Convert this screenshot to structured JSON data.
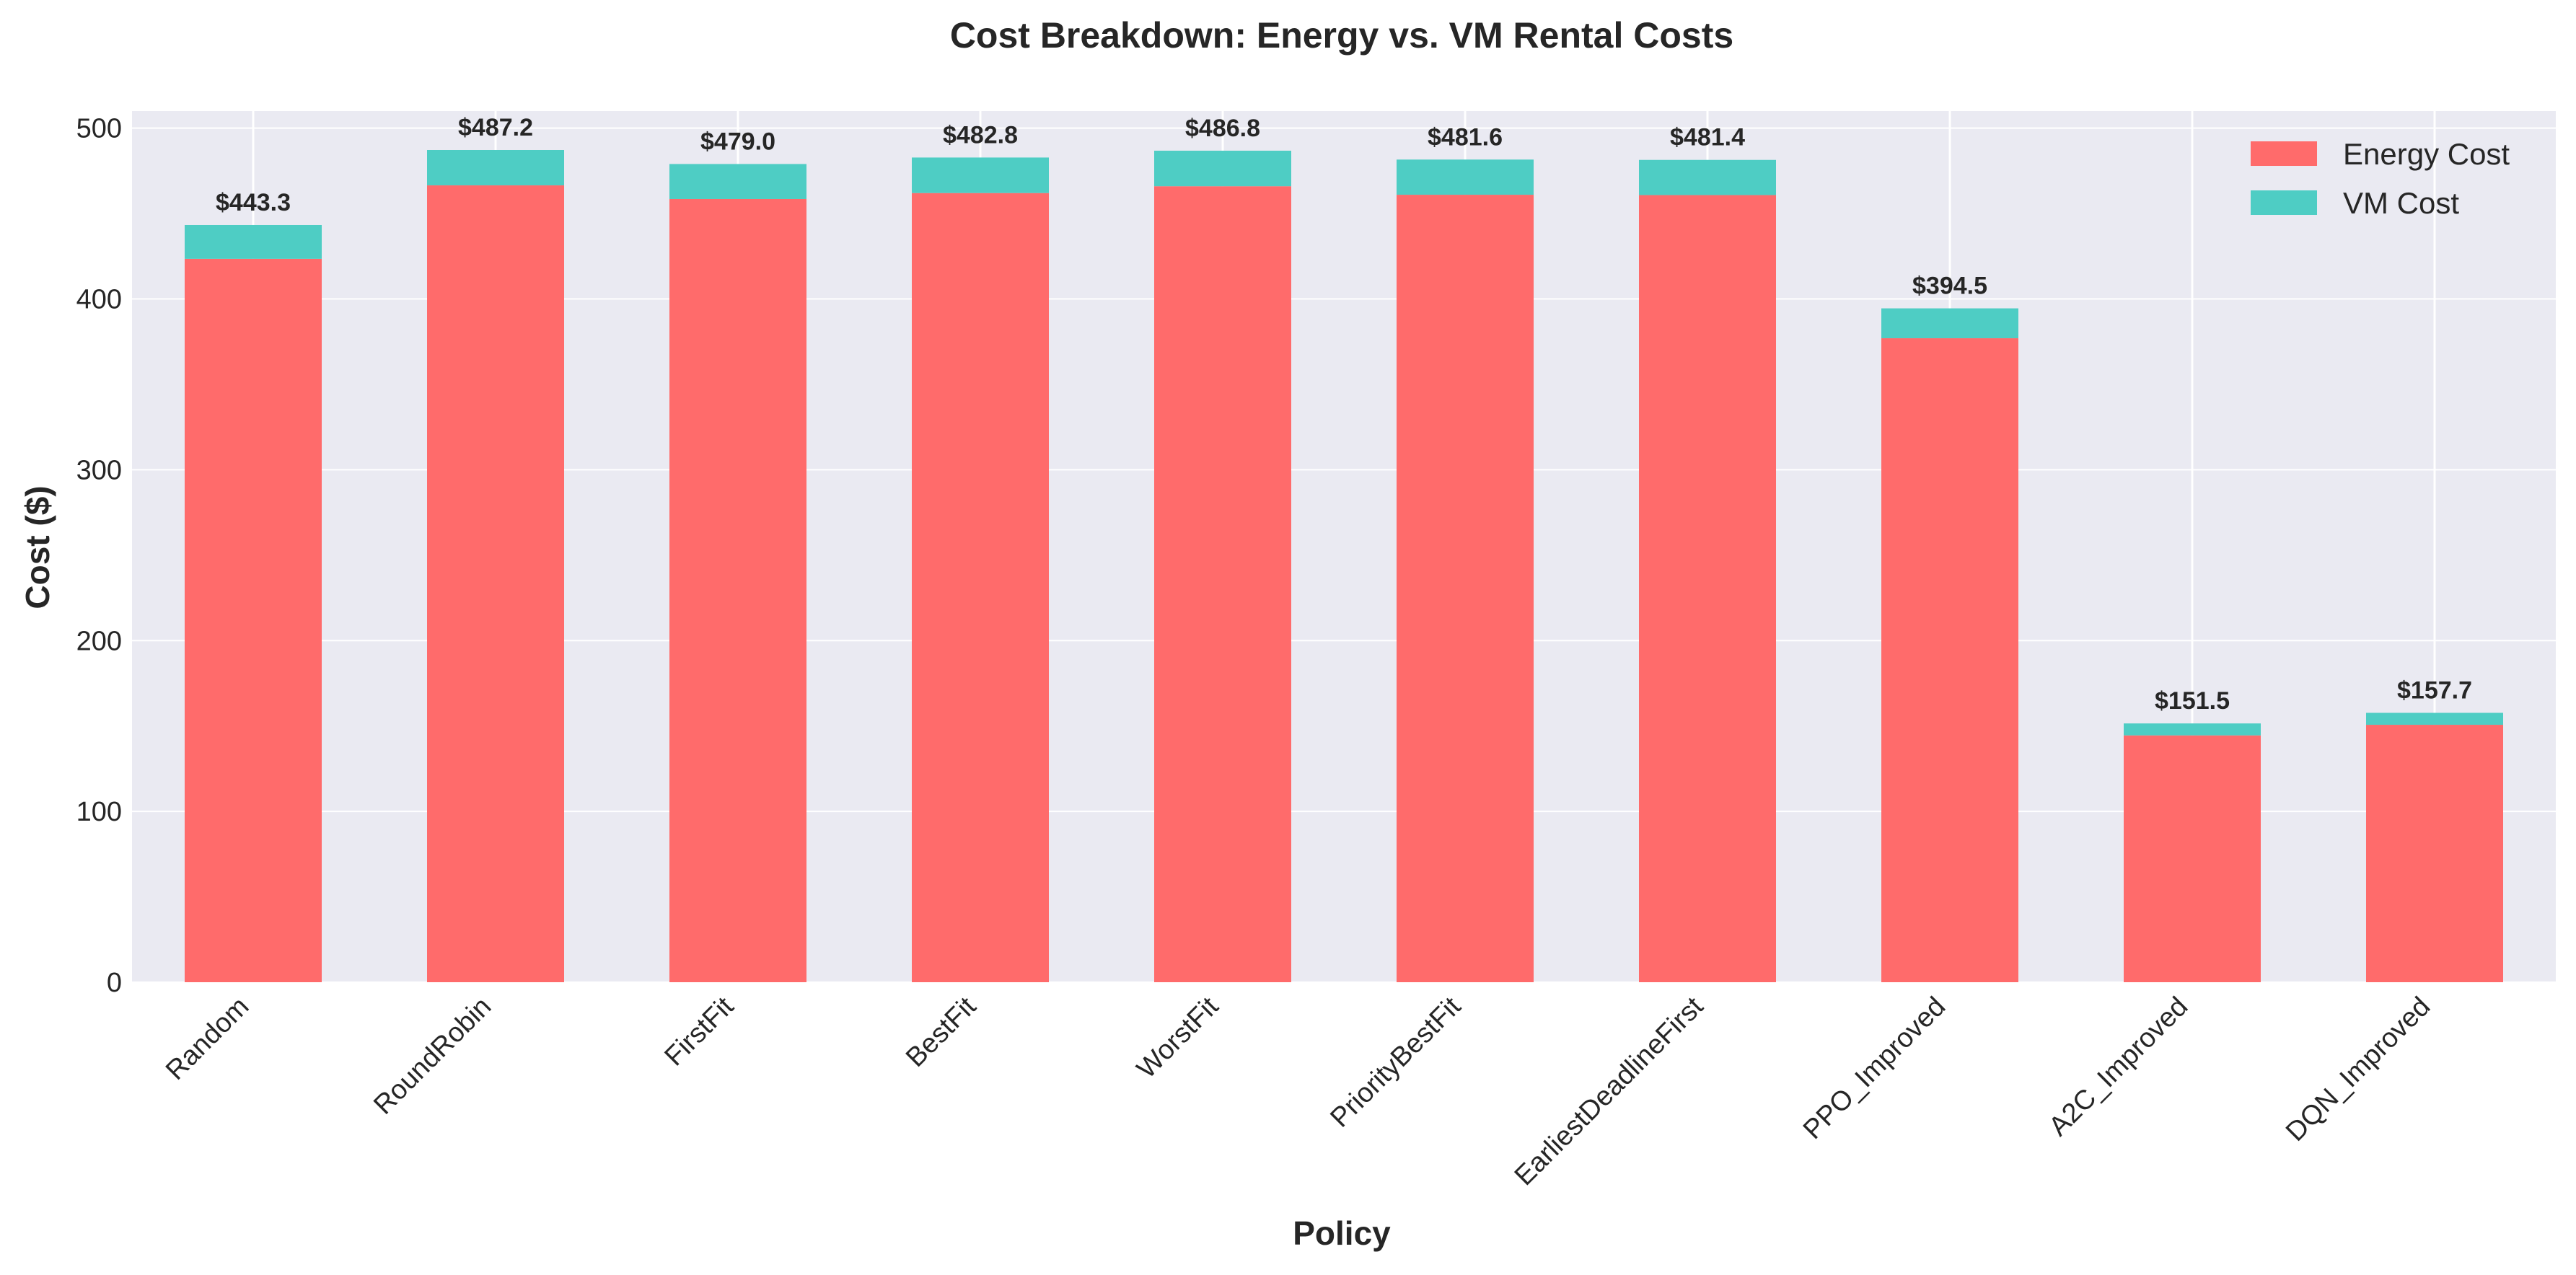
{
  "chart_data": {
    "type": "bar",
    "stacked": true,
    "title": "Cost Breakdown: Energy vs. VM Rental Costs",
    "xlabel": "Policy",
    "ylabel": "Cost ($)",
    "ylim": [
      0,
      510
    ],
    "yticks": [
      "0",
      "100",
      "200",
      "300",
      "400",
      "500"
    ],
    "grid": true,
    "legend_position": "top-right",
    "categories": [
      "Random",
      "RoundRobin",
      "FirstFit",
      "BestFit",
      "WorstFit",
      "PriorityBestFit",
      "EarliestDeadlineFirst",
      "PPO_Improved",
      "A2C_Improved",
      "DQN_Improved"
    ],
    "series": [
      {
        "name": "Energy Cost",
        "color": "#ff6b6b",
        "values": [
          423.5,
          466.5,
          458.5,
          462.0,
          466.0,
          461.0,
          460.8,
          377.0,
          144.5,
          150.7
        ]
      },
      {
        "name": "VM Cost",
        "color": "#4ecdc4",
        "values": [
          19.8,
          20.7,
          20.5,
          20.8,
          20.8,
          20.6,
          20.6,
          17.5,
          7.0,
          7.0
        ]
      }
    ],
    "totals": [
      443.3,
      487.2,
      479.0,
      482.8,
      486.8,
      481.6,
      481.4,
      394.5,
      151.5,
      157.7
    ],
    "total_labels": [
      "$443.3",
      "$487.2",
      "$479.0",
      "$482.8",
      "$486.8",
      "$481.6",
      "$481.4",
      "$394.5",
      "$151.5",
      "$157.7"
    ]
  },
  "colors": {
    "plot_background": "#eaeaf2",
    "grid": "#ffffff"
  }
}
